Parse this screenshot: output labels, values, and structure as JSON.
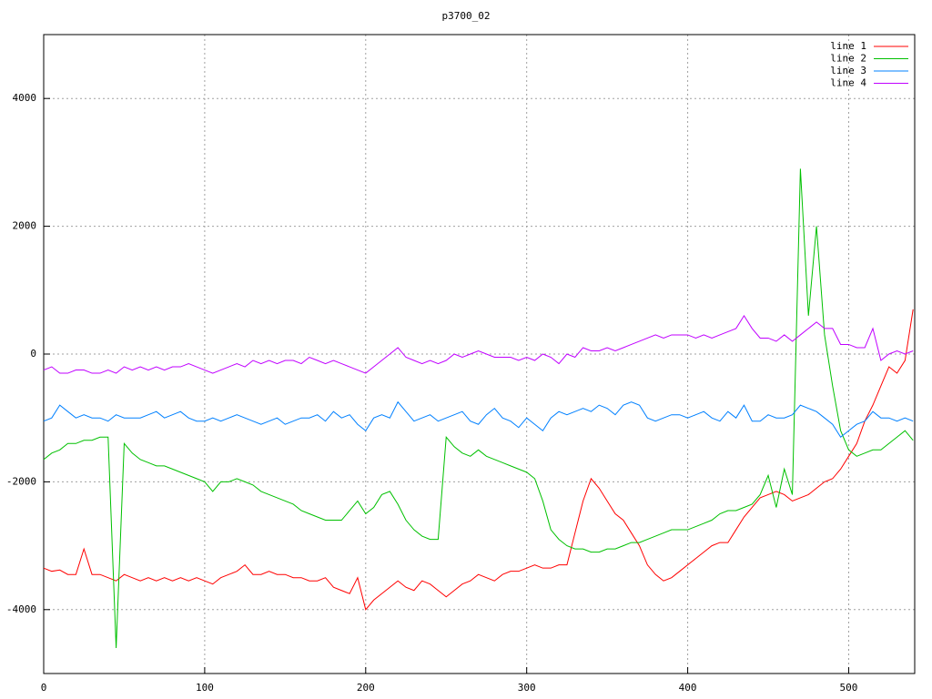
{
  "chart_data": {
    "type": "line",
    "title": "p3700_02",
    "x": [
      0,
      5,
      10,
      15,
      20,
      25,
      30,
      35,
      40,
      45,
      50,
      55,
      60,
      65,
      70,
      75,
      80,
      85,
      90,
      95,
      100,
      105,
      110,
      115,
      120,
      125,
      130,
      135,
      140,
      145,
      150,
      155,
      160,
      165,
      170,
      175,
      180,
      185,
      190,
      195,
      200,
      205,
      210,
      215,
      220,
      225,
      230,
      235,
      240,
      245,
      250,
      255,
      260,
      265,
      270,
      275,
      280,
      285,
      290,
      295,
      300,
      305,
      310,
      315,
      320,
      325,
      330,
      335,
      340,
      345,
      350,
      355,
      360,
      365,
      370,
      375,
      380,
      385,
      390,
      395,
      400,
      405,
      410,
      415,
      420,
      425,
      430,
      435,
      440,
      445,
      450,
      455,
      460,
      465,
      470,
      475,
      480,
      485,
      490,
      495,
      500,
      505,
      510,
      515,
      520,
      525,
      530,
      535,
      540
    ],
    "series": [
      {
        "name": "line 1",
        "color": "#ff0000",
        "values": [
          -3350,
          -3400,
          -3380,
          -3450,
          -3450,
          -3050,
          -3450,
          -3450,
          -3500,
          -3550,
          -3450,
          -3500,
          -3550,
          -3500,
          -3550,
          -3500,
          -3550,
          -3500,
          -3550,
          -3500,
          -3550,
          -3600,
          -3500,
          -3450,
          -3400,
          -3300,
          -3450,
          -3450,
          -3400,
          -3450,
          -3450,
          -3500,
          -3500,
          -3550,
          -3550,
          -3500,
          -3650,
          -3700,
          -3750,
          -3500,
          -4000,
          -3850,
          -3750,
          -3650,
          -3550,
          -3650,
          -3700,
          -3550,
          -3600,
          -3700,
          -3800,
          -3700,
          -3600,
          -3550,
          -3450,
          -3500,
          -3550,
          -3450,
          -3400,
          -3400,
          -3350,
          -3300,
          -3350,
          -3350,
          -3300,
          -3300,
          -2800,
          -2300,
          -1950,
          -2100,
          -2300,
          -2500,
          -2600,
          -2800,
          -3000,
          -3300,
          -3450,
          -3550,
          -3500,
          -3400,
          -3300,
          -3200,
          -3100,
          -3000,
          -2950,
          -2950,
          -2750,
          -2550,
          -2400,
          -2250,
          -2200,
          -2150,
          -2200,
          -2300,
          -2250,
          -2200,
          -2100,
          -2000,
          -1950,
          -1800,
          -1600,
          -1400,
          -1050,
          -800,
          -500,
          -200,
          -300,
          -100,
          700
        ]
      },
      {
        "name": "line 2",
        "color": "#00c000",
        "values": [
          -1650,
          -1550,
          -1500,
          -1400,
          -1400,
          -1350,
          -1350,
          -1300,
          -1300,
          -4600,
          -1400,
          -1550,
          -1650,
          -1700,
          -1750,
          -1750,
          -1800,
          -1850,
          -1900,
          -1950,
          -2000,
          -2150,
          -2000,
          -2000,
          -1950,
          -2000,
          -2050,
          -2150,
          -2200,
          -2250,
          -2300,
          -2350,
          -2450,
          -2500,
          -2550,
          -2600,
          -2600,
          -2600,
          -2450,
          -2300,
          -2500,
          -2400,
          -2200,
          -2150,
          -2350,
          -2600,
          -2750,
          -2850,
          -2900,
          -2900,
          -1300,
          -1450,
          -1550,
          -1600,
          -1500,
          -1600,
          -1650,
          -1700,
          -1750,
          -1800,
          -1850,
          -1950,
          -2300,
          -2750,
          -2900,
          -3000,
          -3050,
          -3050,
          -3100,
          -3100,
          -3050,
          -3050,
          -3000,
          -2950,
          -2950,
          -2900,
          -2850,
          -2800,
          -2750,
          -2750,
          -2750,
          -2700,
          -2650,
          -2600,
          -2500,
          -2450,
          -2450,
          -2400,
          -2350,
          -2200,
          -1900,
          -2400,
          -1800,
          -2200,
          2900,
          600,
          2000,
          300,
          -500,
          -1200,
          -1500,
          -1600,
          -1550,
          -1500,
          -1500,
          -1400,
          -1300,
          -1200,
          -1350
        ]
      },
      {
        "name": "line 3",
        "color": "#0080ff",
        "values": [
          -1050,
          -1000,
          -800,
          -900,
          -1000,
          -950,
          -1000,
          -1000,
          -1050,
          -950,
          -1000,
          -1000,
          -1000,
          -950,
          -900,
          -1000,
          -950,
          -900,
          -1000,
          -1050,
          -1050,
          -1000,
          -1050,
          -1000,
          -950,
          -1000,
          -1050,
          -1100,
          -1050,
          -1000,
          -1100,
          -1050,
          -1000,
          -1000,
          -950,
          -1050,
          -900,
          -1000,
          -950,
          -1100,
          -1200,
          -1000,
          -950,
          -1000,
          -750,
          -900,
          -1050,
          -1000,
          -950,
          -1050,
          -1000,
          -950,
          -900,
          -1050,
          -1100,
          -950,
          -850,
          -1000,
          -1050,
          -1150,
          -1000,
          -1100,
          -1200,
          -1000,
          -900,
          -950,
          -900,
          -850,
          -900,
          -800,
          -850,
          -950,
          -800,
          -750,
          -800,
          -1000,
          -1050,
          -1000,
          -950,
          -950,
          -1000,
          -950,
          -900,
          -1000,
          -1050,
          -900,
          -1000,
          -800,
          -1050,
          -1050,
          -950,
          -1000,
          -1000,
          -950,
          -800,
          -850,
          -900,
          -1000,
          -1100,
          -1300,
          -1200,
          -1100,
          -1050,
          -900,
          -1000,
          -1000,
          -1050,
          -1000,
          -1050
        ]
      },
      {
        "name": "line 4",
        "color": "#c000ff",
        "values": [
          -250,
          -200,
          -300,
          -300,
          -250,
          -250,
          -300,
          -300,
          -250,
          -300,
          -200,
          -250,
          -200,
          -250,
          -200,
          -250,
          -200,
          -200,
          -150,
          -200,
          -250,
          -300,
          -250,
          -200,
          -150,
          -200,
          -100,
          -150,
          -100,
          -150,
          -100,
          -100,
          -150,
          -50,
          -100,
          -150,
          -100,
          -150,
          -200,
          -250,
          -300,
          -200,
          -100,
          0,
          100,
          -50,
          -100,
          -150,
          -100,
          -150,
          -100,
          0,
          -50,
          0,
          50,
          0,
          -50,
          -50,
          -50,
          -100,
          -50,
          -100,
          0,
          -50,
          -150,
          0,
          -50,
          100,
          50,
          50,
          100,
          50,
          100,
          150,
          200,
          250,
          300,
          250,
          300,
          300,
          300,
          250,
          300,
          250,
          300,
          350,
          400,
          600,
          400,
          250,
          250,
          200,
          300,
          200,
          300,
          400,
          500,
          400,
          400,
          150,
          150,
          100,
          100,
          400,
          -100,
          0,
          50,
          0,
          50
        ]
      }
    ],
    "xlim": [
      0,
      541
    ],
    "ylim": [
      -5000,
      5000
    ],
    "xticks": [
      0,
      100,
      200,
      300,
      400,
      500
    ],
    "yticks": [
      -4000,
      -2000,
      0,
      2000,
      4000
    ],
    "grid": true,
    "legend": "upper right"
  }
}
